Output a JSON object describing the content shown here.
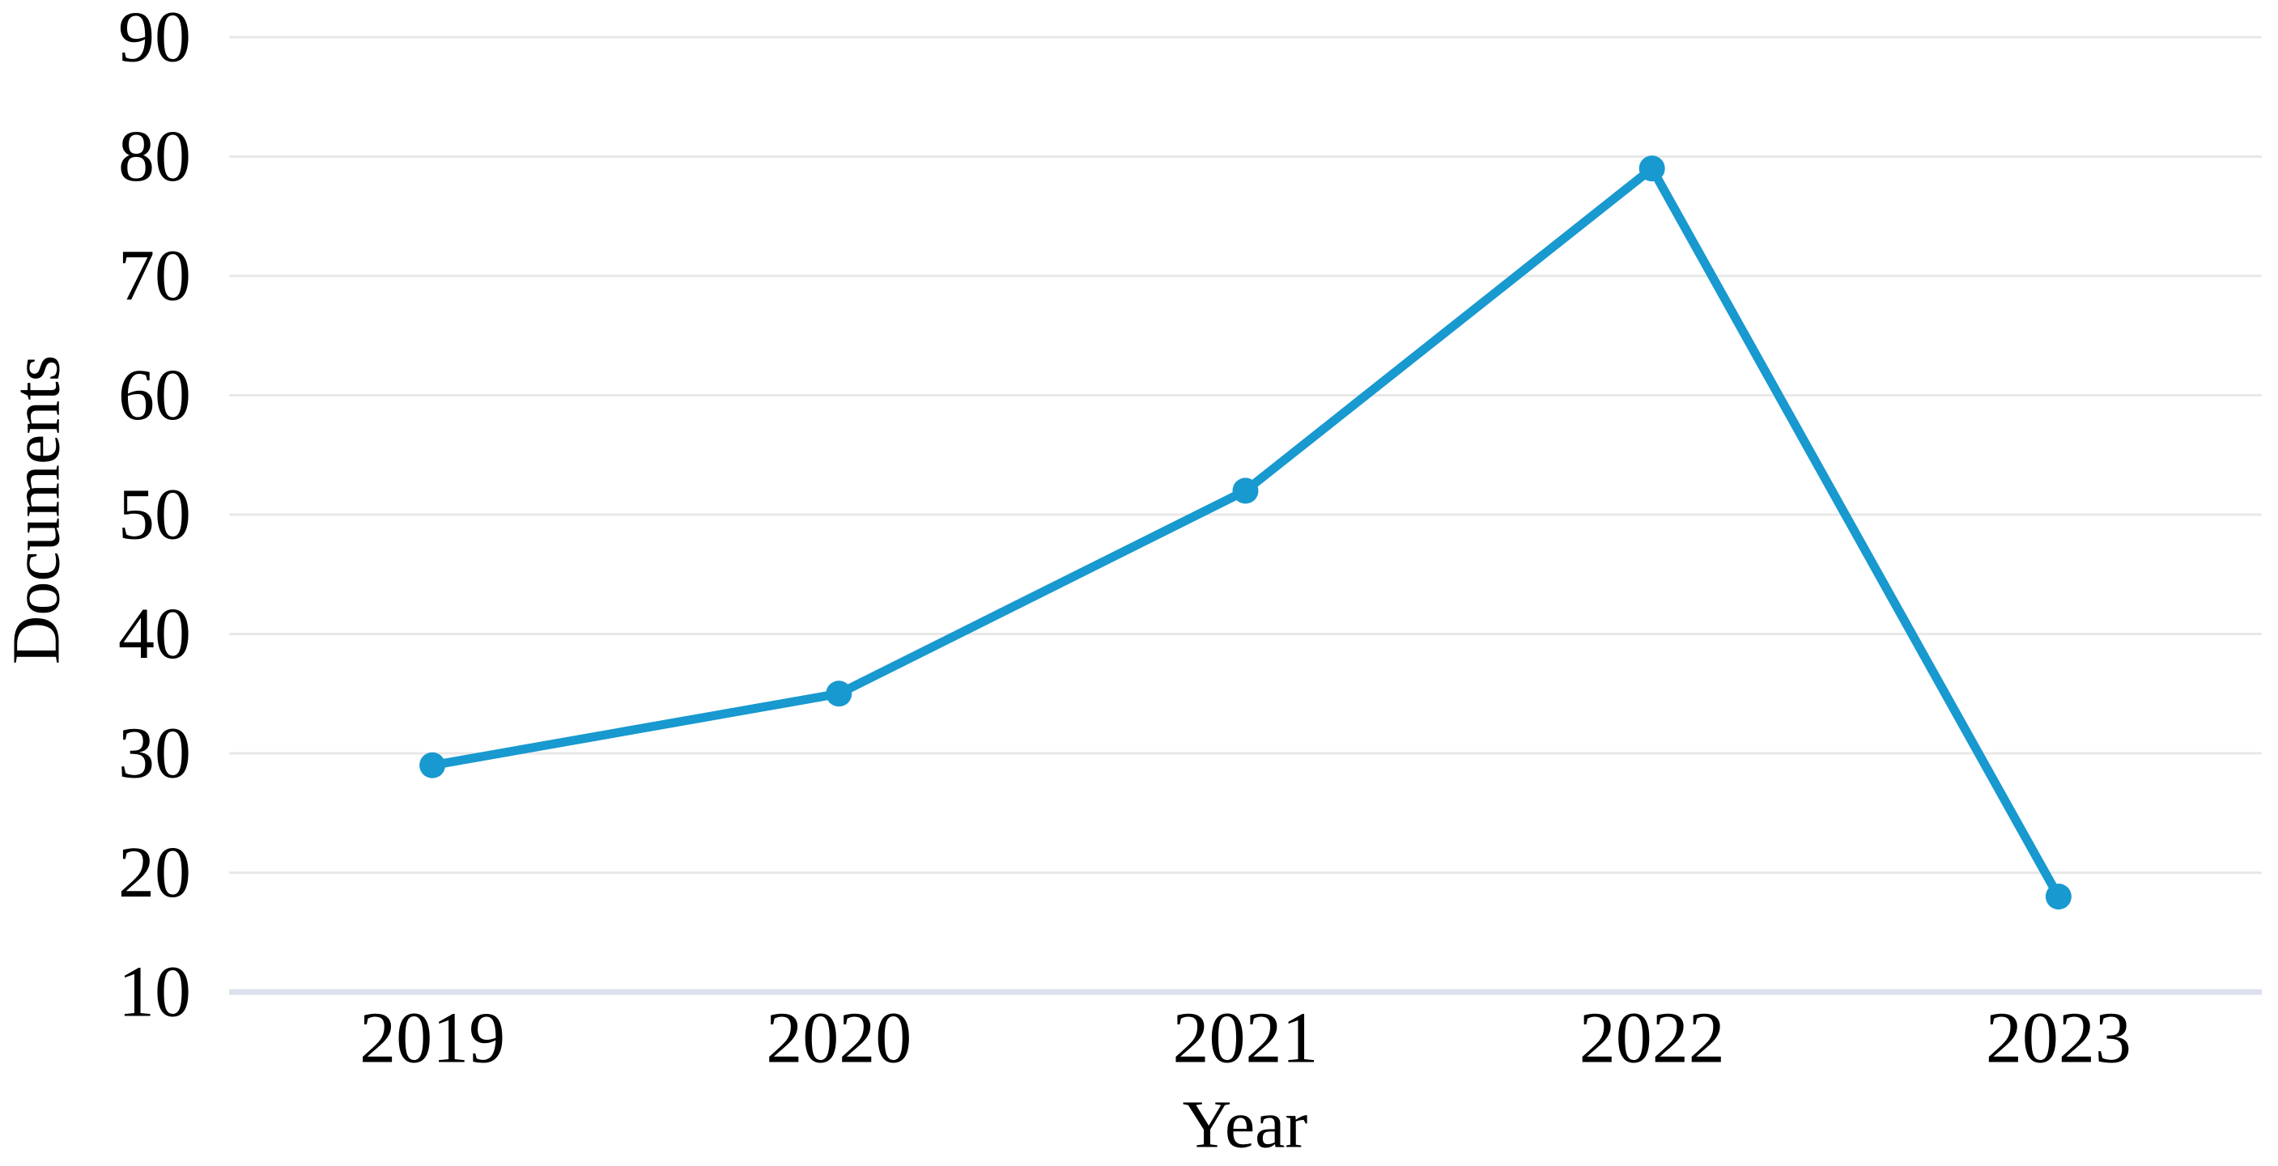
{
  "chart_data": {
    "type": "line",
    "title": "",
    "xlabel": "Year",
    "ylabel": "Documents",
    "categories": [
      "2019",
      "2020",
      "2021",
      "2022",
      "2023"
    ],
    "series": [
      {
        "name": "Documents",
        "values": [
          29,
          35,
          52,
          79,
          18
        ]
      }
    ],
    "y_ticks": [
      90,
      80,
      70,
      60,
      50,
      40,
      30,
      20,
      10
    ],
    "ylim": [
      10,
      90
    ],
    "grid": true,
    "legend": false,
    "marker": "circle",
    "colors": {
      "line": "#1899CF",
      "marker": "#1899CF",
      "gridline": "#E8E8E8",
      "baseline": "#DCE0ED",
      "text": "#000000"
    }
  }
}
